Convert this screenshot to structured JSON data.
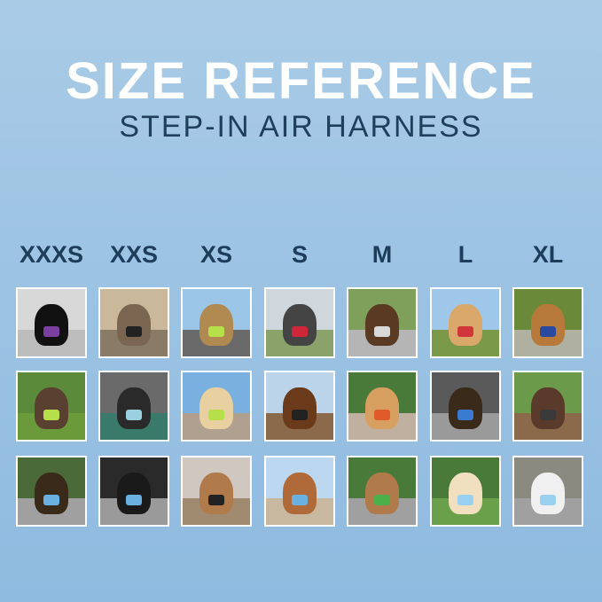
{
  "header": {
    "title": "SIZE REFERENCE",
    "subtitle": "STEP-IN AIR HARNESS"
  },
  "sizes": [
    "XXXS",
    "XXS",
    "XS",
    "S",
    "M",
    "L",
    "XL"
  ],
  "photos": [
    [
      {
        "sky": "#d8d8d8",
        "ground": "#bdbdbd",
        "pet": "#111",
        "harness": "#7a3fa0"
      },
      {
        "sky": "#c9b89a",
        "ground": "#8a7b66",
        "pet": "#7a6650",
        "harness": "#222"
      },
      {
        "sky": "#9cc6e8",
        "ground": "#6a6a6a",
        "pet": "#b08a50",
        "harness": "#b6e04a"
      },
      {
        "sky": "#cfd6dc",
        "ground": "#8aa36a",
        "pet": "#444",
        "harness": "#d0263a"
      },
      {
        "sky": "#7fa05a",
        "ground": "#b5b5b5",
        "pet": "#5a3a22",
        "harness": "#d9d9d9"
      },
      {
        "sky": "#9fc7ea",
        "ground": "#7a9a4a",
        "pet": "#d9a86a",
        "harness": "#d0363a"
      },
      {
        "sky": "#6a8a3a",
        "ground": "#b0b0a0",
        "pet": "#b87a3a",
        "harness": "#2a4aa0"
      }
    ],
    [
      {
        "sky": "#5a8a3a",
        "ground": "#6a9a3a",
        "pet": "#5a4030",
        "harness": "#b6e04a"
      },
      {
        "sky": "#6a6a6a",
        "ground": "#3a7a6a",
        "pet": "#2a2a2a",
        "harness": "#9ad0e0"
      },
      {
        "sky": "#7ab0e0",
        "ground": "#b0a090",
        "pet": "#e8d0a0",
        "harness": "#b6e04a"
      },
      {
        "sky": "#bcd4ea",
        "ground": "#8a6a4a",
        "pet": "#6a3a1a",
        "harness": "#222"
      },
      {
        "sky": "#4a7a3a",
        "ground": "#c0b0a0",
        "pet": "#d8a060",
        "harness": "#e05a2a"
      },
      {
        "sky": "#5a5a5a",
        "ground": "#9a9a9a",
        "pet": "#3a2a1a",
        "harness": "#3a7ad0"
      },
      {
        "sky": "#6a9a4a",
        "ground": "#8a6a4a",
        "pet": "#5a3a2a",
        "harness": "#3a3a3a"
      }
    ],
    [
      {
        "sky": "#4a6a3a",
        "ground": "#a0a0a0",
        "pet": "#3a2a1a",
        "harness": "#6ab0e0"
      },
      {
        "sky": "#2a2a2a",
        "ground": "#9a9a9a",
        "pet": "#1a1a1a",
        "harness": "#6ab0e0"
      },
      {
        "sky": "#d0c8c0",
        "ground": "#a08a70",
        "pet": "#b07a4a",
        "harness": "#222"
      },
      {
        "sky": "#bcd8f0",
        "ground": "#c8b8a0",
        "pet": "#b06a3a",
        "harness": "#6ab0e0"
      },
      {
        "sky": "#4a7a3a",
        "ground": "#a0a0a0",
        "pet": "#b07a4a",
        "harness": "#4ab04a"
      },
      {
        "sky": "#4a7a3a",
        "ground": "#6aa04a",
        "pet": "#f0e0c0",
        "harness": "#9ad0f0"
      },
      {
        "sky": "#8a8a80",
        "ground": "#a0a0a0",
        "pet": "#f0f0f0",
        "harness": "#9ad0f0"
      }
    ]
  ]
}
